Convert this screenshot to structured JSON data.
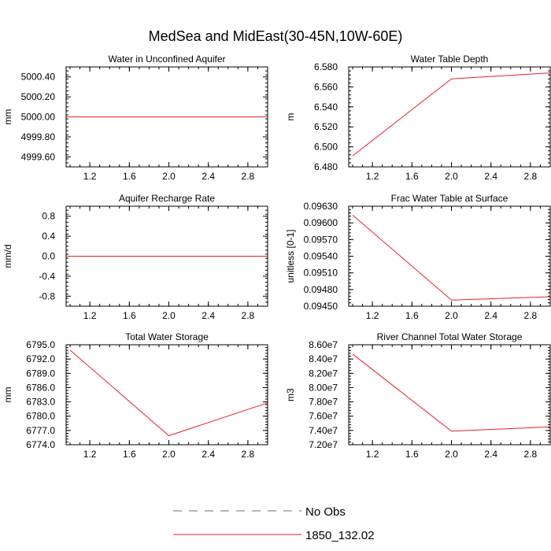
{
  "figure": {
    "title": "MedSea and MidEast(30-45N,10W-60E)"
  },
  "legend": {
    "entries": [
      {
        "label": "No Obs",
        "style": "dashed",
        "color": "#6b6b80"
      },
      {
        "label": "1850_132.02",
        "style": "solid",
        "color": "#e8202a"
      }
    ]
  },
  "chart_data": [
    {
      "type": "line",
      "title": "Water in Unconfined Aquifer",
      "ylabel": "mm",
      "xlim": [
        0.96,
        3.0
      ],
      "ylim": [
        4999.5,
        5000.5
      ],
      "xticks": [
        1.2,
        1.6,
        2.0,
        2.4,
        2.8
      ],
      "xticklabels": [
        "1.2",
        "1.6",
        "2.0",
        "2.4",
        "2.8"
      ],
      "yticks": [
        4999.6,
        4999.8,
        5000.0,
        5000.2,
        5000.4
      ],
      "yticklabels": [
        "4999.60",
        "4999.80",
        "5000.00",
        "5000.20",
        "5000.40"
      ],
      "series": [
        {
          "name": "1850_132.02",
          "x": [
            0.96,
            1.0,
            2.0,
            3.0
          ],
          "y": [
            5000.0,
            5000.0,
            5000.0,
            5000.0
          ]
        }
      ]
    },
    {
      "type": "line",
      "title": "Water Table Depth",
      "ylabel": "m",
      "xlim": [
        0.96,
        3.0
      ],
      "ylim": [
        6.48,
        6.58
      ],
      "xticks": [
        1.2,
        1.6,
        2.0,
        2.4,
        2.8
      ],
      "xticklabels": [
        "1.2",
        "1.6",
        "2.0",
        "2.4",
        "2.8"
      ],
      "yticks": [
        6.48,
        6.5,
        6.52,
        6.54,
        6.56,
        6.58
      ],
      "yticklabels": [
        "6.480",
        "6.500",
        "6.520",
        "6.540",
        "6.560",
        "6.580"
      ],
      "series": [
        {
          "name": "1850_132.02",
          "x": [
            1.0,
            2.0,
            3.0
          ],
          "y": [
            6.491,
            6.568,
            6.574
          ]
        }
      ]
    },
    {
      "type": "line",
      "title": "Aquifer Recharge Rate",
      "ylabel": "mm/d",
      "xlim": [
        0.96,
        3.0
      ],
      "ylim": [
        -1.0,
        1.0
      ],
      "xticks": [
        1.2,
        1.6,
        2.0,
        2.4,
        2.8
      ],
      "xticklabels": [
        "1.2",
        "1.6",
        "2.0",
        "2.4",
        "2.8"
      ],
      "yticks": [
        -0.8,
        -0.4,
        0.0,
        0.4,
        0.8
      ],
      "yticklabels": [
        "-0.8",
        "-0.4",
        "0.0",
        "0.4",
        "0.8"
      ],
      "series": [
        {
          "name": "1850_132.02",
          "x": [
            0.96,
            1.0,
            2.0,
            3.0
          ],
          "y": [
            0.0,
            0.0,
            0.0,
            0.0
          ]
        }
      ]
    },
    {
      "type": "line",
      "title": "Frac Water Table at Surface",
      "ylabel": "unitless [0-1]",
      "xlim": [
        0.96,
        3.0
      ],
      "ylim": [
        0.0945,
        0.0963
      ],
      "xticks": [
        1.2,
        1.6,
        2.0,
        2.4,
        2.8
      ],
      "xticklabels": [
        "1.2",
        "1.6",
        "2.0",
        "2.4",
        "2.8"
      ],
      "yticks": [
        0.0945,
        0.0948,
        0.0951,
        0.0954,
        0.0957,
        0.096,
        0.0963
      ],
      "yticklabels": [
        "0.09450",
        "0.09480",
        "0.09510",
        "0.09540",
        "0.09570",
        "0.09600",
        "0.09630"
      ],
      "series": [
        {
          "name": "1850_132.02",
          "x": [
            1.0,
            2.0,
            3.0
          ],
          "y": [
            0.09614,
            0.09461,
            0.09467
          ]
        }
      ]
    },
    {
      "type": "line",
      "title": "Total Water Storage",
      "ylabel": "mm",
      "xlim": [
        0.96,
        3.0
      ],
      "ylim": [
        6774.0,
        6795.0
      ],
      "xticks": [
        1.2,
        1.6,
        2.0,
        2.4,
        2.8
      ],
      "xticklabels": [
        "1.2",
        "1.6",
        "2.0",
        "2.4",
        "2.8"
      ],
      "yticks": [
        6774.0,
        6777.0,
        6780.0,
        6783.0,
        6786.0,
        6789.0,
        6792.0,
        6795.0
      ],
      "yticklabels": [
        "6774.0",
        "6777.0",
        "6780.0",
        "6783.0",
        "6786.0",
        "6789.0",
        "6792.0",
        "6795.0"
      ],
      "series": [
        {
          "name": "1850_132.02",
          "x": [
            1.0,
            2.0,
            3.0
          ],
          "y": [
            6793.9,
            6775.9,
            6782.8
          ]
        }
      ]
    },
    {
      "type": "line",
      "title": "River Channel Total Water Storage",
      "ylabel": "m3",
      "xlim": [
        0.96,
        3.0
      ],
      "ylim": [
        72000000,
        86000000
      ],
      "xticks": [
        1.2,
        1.6,
        2.0,
        2.4,
        2.8
      ],
      "xticklabels": [
        "1.2",
        "1.6",
        "2.0",
        "2.4",
        "2.8"
      ],
      "yticks": [
        72000000,
        74000000,
        76000000,
        78000000,
        80000000,
        82000000,
        84000000,
        86000000
      ],
      "yticklabels": [
        "7.20e7",
        "7.40e7",
        "7.60e7",
        "7.80e7",
        "8.00e7",
        "8.20e7",
        "8.40e7",
        "8.60e7"
      ],
      "series": [
        {
          "name": "1850_132.02",
          "x": [
            1.0,
            2.0,
            3.0
          ],
          "y": [
            84700000,
            73900000,
            74500000
          ]
        }
      ]
    }
  ]
}
